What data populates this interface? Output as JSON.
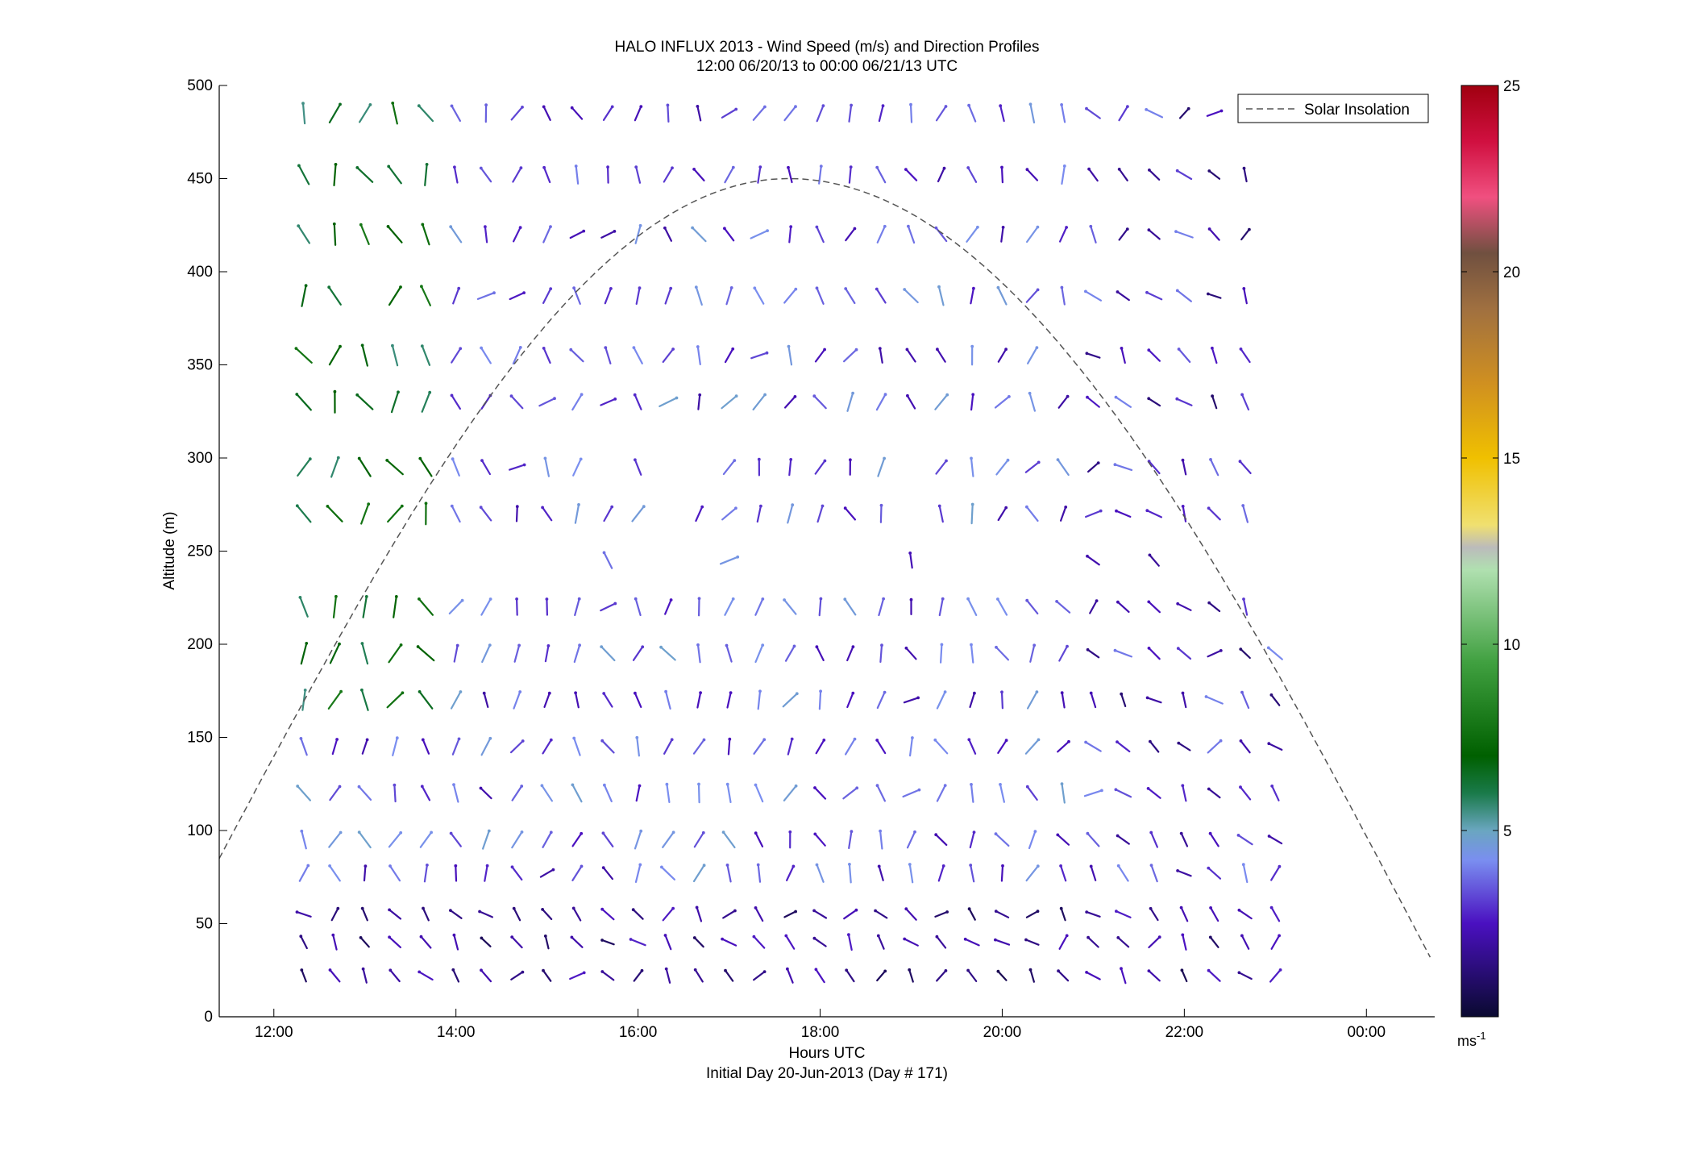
{
  "chart_data": {
    "type": "scatter",
    "title": "HALO INFLUX 2013 - Wind Speed (m/s) and Direction Profiles",
    "subtitle": "12:00 06/20/13 to 00:00 06/21/13  UTC",
    "xlabel": "Hours UTC",
    "xlabel2": "Initial Day 20-Jun-2013 (Day # 171)",
    "ylabel": "Altitude (m)",
    "xlim": [
      11.4,
      24.75
    ],
    "ylim": [
      0,
      500
    ],
    "x_ticks": [
      {
        "value": 12,
        "label": "12:00"
      },
      {
        "value": 14,
        "label": "14:00"
      },
      {
        "value": 16,
        "label": "16:00"
      },
      {
        "value": 18,
        "label": "18:00"
      },
      {
        "value": 20,
        "label": "20:00"
      },
      {
        "value": 22,
        "label": "22:00"
      },
      {
        "value": 24,
        "label": "00:00"
      }
    ],
    "y_ticks": [
      "0",
      "50",
      "100",
      "150",
      "200",
      "250",
      "300",
      "350",
      "400",
      "450",
      "500"
    ],
    "legend": {
      "position": "top-right",
      "entries": [
        "Solar Insolation"
      ]
    },
    "solar_insolation_curve": {
      "style": "dashed",
      "color": "#555555",
      "peak_x": 17.65,
      "peak_y": 450,
      "points": [
        [
          11.4,
          85
        ],
        [
          17.65,
          450
        ],
        [
          24.7,
          32
        ]
      ]
    },
    "colorbar": {
      "ticks": [
        "5",
        "10",
        "15",
        "20",
        "25"
      ],
      "min": 0,
      "max": 25,
      "unit_label": "ms",
      "unit_exponent": "-1",
      "stops": [
        {
          "value": 0,
          "color": "#0a0a30"
        },
        {
          "value": 2.5,
          "color": "#4a10c0"
        },
        {
          "value": 4.2,
          "color": "#7a8ef0"
        },
        {
          "value": 5.0,
          "color": "#6aa6c0"
        },
        {
          "value": 6.0,
          "color": "#1a7a4a"
        },
        {
          "value": 7.0,
          "color": "#006000"
        },
        {
          "value": 9.5,
          "color": "#40a040"
        },
        {
          "value": 12.0,
          "color": "#b0e0b0"
        },
        {
          "value": 12.6,
          "color": "#bbbbbb"
        },
        {
          "value": 13.2,
          "color": "#f0e070"
        },
        {
          "value": 15.0,
          "color": "#f0c000"
        },
        {
          "value": 17.0,
          "color": "#d09020"
        },
        {
          "value": 19.0,
          "color": "#a07040"
        },
        {
          "value": 20.5,
          "color": "#705040"
        },
        {
          "value": 22.0,
          "color": "#f05080"
        },
        {
          "value": 23.5,
          "color": "#d01040"
        },
        {
          "value": 25,
          "color": "#a00010"
        }
      ]
    },
    "wind_barbs": {
      "arrow_length_hours": 0.22,
      "times_hours": [
        12.33,
        12.67,
        13.0,
        13.33,
        13.67,
        14.0,
        14.33,
        14.67,
        15.0,
        15.33,
        15.67,
        16.0,
        16.33,
        16.67,
        17.0,
        17.33,
        17.67,
        18.0,
        18.33,
        18.67,
        19.0,
        19.33,
        19.67,
        20.0,
        20.33,
        20.67,
        21.0,
        21.33,
        21.67,
        22.0,
        22.33,
        22.67,
        23.0
      ],
      "profiles": [
        {
          "altitude": 485,
          "missing_time_indices": [
            32
          ]
        },
        {
          "altitude": 452,
          "missing_time_indices": [
            32
          ]
        },
        {
          "altitude": 420,
          "missing_time_indices": [
            32
          ]
        },
        {
          "altitude": 387,
          "missing_time_indices": [
            2,
            32
          ]
        },
        {
          "altitude": 355,
          "missing_time_indices": [
            25,
            32
          ]
        },
        {
          "altitude": 330,
          "missing_time_indices": [
            32
          ]
        },
        {
          "altitude": 295,
          "missing_time_indices": [
            10,
            12,
            13,
            20,
            32
          ]
        },
        {
          "altitude": 270,
          "missing_time_indices": [
            12,
            20,
            32
          ]
        },
        {
          "altitude": 245,
          "missing_time_indices": [
            0,
            1,
            2,
            3,
            4,
            5,
            6,
            7,
            8,
            9,
            11,
            12,
            13,
            15,
            16,
            17,
            18,
            19,
            21,
            22,
            23,
            24,
            25,
            27,
            29,
            30,
            31,
            32
          ]
        },
        {
          "altitude": 220,
          "missing_time_indices": [
            32
          ]
        },
        {
          "altitude": 195,
          "missing_time_indices": []
        },
        {
          "altitude": 170,
          "missing_time_indices": []
        },
        {
          "altitude": 145,
          "missing_time_indices": []
        },
        {
          "altitude": 120,
          "missing_time_indices": []
        },
        {
          "altitude": 95,
          "missing_time_indices": []
        },
        {
          "altitude": 77,
          "missing_time_indices": []
        },
        {
          "altitude": 55,
          "missing_time_indices": []
        },
        {
          "altitude": 40,
          "missing_time_indices": []
        },
        {
          "altitude": 22,
          "missing_time_indices": []
        }
      ]
    }
  }
}
